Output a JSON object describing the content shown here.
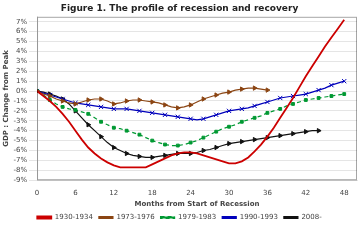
{
  "chart_data": {
    "type": "line",
    "title": "Figure 1. The profile of recession and recovery",
    "x_label": "Months from Start of Recession",
    "y_label": "GDP : Change from Peak",
    "xlim": [
      0,
      50
    ],
    "xticks": [
      0,
      6,
      12,
      18,
      24,
      30,
      36,
      42,
      48
    ],
    "ylim": [
      -0.09,
      0.075
    ],
    "yticks": [
      {
        "value": -0.09,
        "label": "-9%"
      },
      {
        "value": -0.08,
        "label": "-8%"
      },
      {
        "value": -0.07,
        "label": "-7%"
      },
      {
        "value": -0.06,
        "label": "-6%"
      },
      {
        "value": -0.05,
        "label": "-5%"
      },
      {
        "value": -0.04,
        "label": "-4%"
      },
      {
        "value": -0.03,
        "label": "-3%"
      },
      {
        "value": -0.02,
        "label": "-2%"
      },
      {
        "value": -0.01,
        "label": "-1%"
      },
      {
        "value": 0,
        "label": "0%"
      },
      {
        "value": 0.01,
        "label": "1%"
      },
      {
        "value": 0.02,
        "label": "2%"
      },
      {
        "value": 0.03,
        "label": "3%"
      },
      {
        "value": 0.04,
        "label": "4%"
      },
      {
        "value": 0.05,
        "label": "5%"
      },
      {
        "value": 0.06,
        "label": "6%"
      },
      {
        "value": 0.07,
        "label": "7%"
      }
    ],
    "grid": "y",
    "legend": "bottom",
    "series": [
      {
        "name": "1930-1934",
        "color": "#cc0000",
        "line_style": "solid",
        "marker": "none",
        "x": [
          0,
          1,
          2,
          3,
          4,
          5,
          6,
          7,
          8,
          9,
          10,
          11,
          12,
          13,
          14,
          15,
          16,
          17,
          18,
          19,
          20,
          21,
          22,
          23,
          24,
          25,
          26,
          27,
          28,
          29,
          30,
          31,
          32,
          33,
          34,
          35,
          36,
          37,
          38,
          39,
          40,
          41,
          42,
          43,
          44,
          45,
          46,
          47,
          48
        ],
        "values": [
          0,
          -0.005,
          -0.01,
          -0.016,
          -0.023,
          -0.031,
          -0.04,
          -0.049,
          -0.057,
          -0.063,
          -0.068,
          -0.072,
          -0.075,
          -0.077,
          -0.077,
          -0.077,
          -0.077,
          -0.077,
          -0.074,
          -0.071,
          -0.068,
          -0.065,
          -0.063,
          -0.062,
          -0.062,
          -0.063,
          -0.065,
          -0.067,
          -0.069,
          -0.071,
          -0.073,
          -0.073,
          -0.071,
          -0.067,
          -0.061,
          -0.054,
          -0.046,
          -0.037,
          -0.027,
          -0.017,
          -0.007,
          0.004,
          0.015,
          0.025,
          0.035,
          0.045,
          0.054,
          0.063,
          0.072
        ]
      },
      {
        "name": "1973-1976",
        "color": "#8B4513",
        "line_style": "solid",
        "marker": "triangle-right",
        "x": [
          0,
          1,
          2,
          3,
          4,
          5,
          6,
          7,
          8,
          9,
          10,
          11,
          12,
          13,
          14,
          15,
          16,
          17,
          18,
          19,
          20,
          21,
          22,
          23,
          24,
          25,
          26,
          27,
          28,
          29,
          30,
          31,
          32,
          33,
          34,
          35,
          36
        ],
        "values": [
          0,
          -0.003,
          -0.005,
          -0.008,
          -0.01,
          -0.012,
          -0.013,
          -0.011,
          -0.009,
          -0.008,
          -0.008,
          -0.01,
          -0.013,
          -0.012,
          -0.01,
          -0.009,
          -0.009,
          -0.01,
          -0.011,
          -0.012,
          -0.014,
          -0.016,
          -0.017,
          -0.016,
          -0.014,
          -0.011,
          -0.008,
          -0.006,
          -0.004,
          -0.002,
          -0.001,
          0.001,
          0.002,
          0.003,
          0.003,
          0.002,
          0.001
        ]
      },
      {
        "name": "1979-1983",
        "color": "#009933",
        "line_style": "dashed",
        "marker": "square",
        "x": [
          0,
          1,
          2,
          3,
          4,
          5,
          6,
          7,
          8,
          9,
          10,
          11,
          12,
          13,
          14,
          15,
          16,
          17,
          18,
          19,
          20,
          21,
          22,
          23,
          24,
          25,
          26,
          27,
          28,
          29,
          30,
          31,
          32,
          33,
          34,
          35,
          36,
          37,
          38,
          39,
          40,
          41,
          42,
          43,
          44,
          45,
          46,
          47,
          48
        ],
        "values": [
          0,
          -0.004,
          -0.009,
          -0.013,
          -0.016,
          -0.018,
          -0.019,
          -0.021,
          -0.023,
          -0.027,
          -0.031,
          -0.034,
          -0.037,
          -0.038,
          -0.04,
          -0.042,
          -0.044,
          -0.047,
          -0.05,
          -0.052,
          -0.054,
          -0.055,
          -0.055,
          -0.054,
          -0.052,
          -0.05,
          -0.047,
          -0.044,
          -0.041,
          -0.038,
          -0.036,
          -0.034,
          -0.031,
          -0.029,
          -0.027,
          -0.025,
          -0.022,
          -0.02,
          -0.018,
          -0.015,
          -0.013,
          -0.011,
          -0.009,
          -0.008,
          -0.007,
          -0.006,
          -0.005,
          -0.004,
          -0.003
        ]
      },
      {
        "name": "1990-1993",
        "color": "#0000bb",
        "line_style": "solid",
        "marker": "x",
        "x": [
          0,
          1,
          2,
          3,
          4,
          5,
          6,
          7,
          8,
          9,
          10,
          11,
          12,
          13,
          14,
          15,
          16,
          17,
          18,
          19,
          20,
          21,
          22,
          23,
          24,
          25,
          26,
          27,
          28,
          29,
          30,
          31,
          32,
          33,
          34,
          35,
          36,
          37,
          38,
          39,
          40,
          41,
          42,
          43,
          44,
          45,
          46,
          47,
          48
        ],
        "values": [
          0,
          -0.002,
          -0.004,
          -0.006,
          -0.008,
          -0.01,
          -0.012,
          -0.013,
          -0.014,
          -0.015,
          -0.016,
          -0.017,
          -0.018,
          -0.018,
          -0.018,
          -0.019,
          -0.02,
          -0.021,
          -0.022,
          -0.023,
          -0.024,
          -0.025,
          -0.026,
          -0.027,
          -0.028,
          -0.029,
          -0.028,
          -0.026,
          -0.024,
          -0.022,
          -0.02,
          -0.019,
          -0.018,
          -0.017,
          -0.015,
          -0.013,
          -0.011,
          -0.009,
          -0.007,
          -0.006,
          -0.005,
          -0.004,
          -0.003,
          -0.001,
          0.001,
          0.003,
          0.006,
          0.008,
          0.01
        ]
      },
      {
        "name": "2008-",
        "color": "#111111",
        "line_style": "solid",
        "marker": "triangle-right",
        "x": [
          0,
          1,
          2,
          3,
          4,
          5,
          6,
          7,
          8,
          9,
          10,
          11,
          12,
          13,
          14,
          15,
          16,
          17,
          18,
          19,
          20,
          21,
          22,
          23,
          24,
          25,
          26,
          27,
          28,
          29,
          30,
          31,
          32,
          33,
          34,
          35,
          36,
          37,
          38,
          39,
          40,
          41,
          42,
          43,
          44
        ],
        "values": [
          0,
          -0.001,
          -0.003,
          -0.005,
          -0.008,
          -0.013,
          -0.02,
          -0.027,
          -0.034,
          -0.04,
          -0.046,
          -0.052,
          -0.057,
          -0.06,
          -0.063,
          -0.065,
          -0.066,
          -0.067,
          -0.067,
          -0.066,
          -0.065,
          -0.064,
          -0.063,
          -0.063,
          -0.063,
          -0.062,
          -0.06,
          -0.059,
          -0.057,
          -0.055,
          -0.053,
          -0.052,
          -0.051,
          -0.05,
          -0.049,
          -0.048,
          -0.047,
          -0.046,
          -0.045,
          -0.044,
          -0.043,
          -0.042,
          -0.041,
          -0.04,
          -0.04
        ]
      }
    ]
  }
}
